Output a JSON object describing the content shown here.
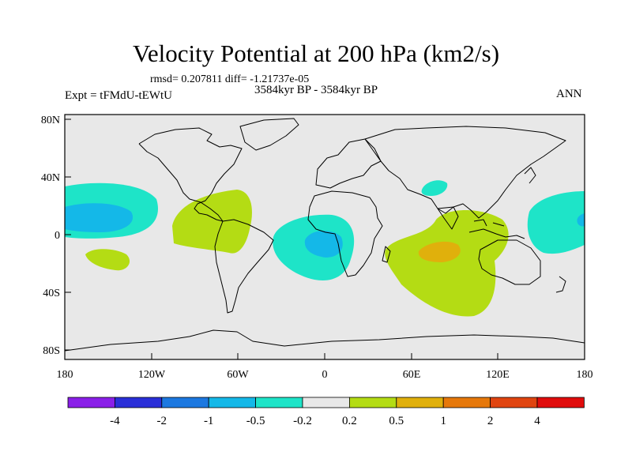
{
  "title": "Velocity Potential at 200 hPa (km2/s)",
  "stats": "rmsd= 0.207811 diff= -1.21737e-05",
  "experiment": "Expt = tFMdU-tEWtU",
  "period": "3584kyr BP - 3584kyr BP",
  "season": "ANN",
  "lat_labels": [
    "80N",
    "40N",
    "0",
    "40S",
    "80S"
  ],
  "lon_labels": [
    "180",
    "120W",
    "60W",
    "0",
    "60E",
    "120E",
    "180"
  ],
  "colorbar": {
    "colors": [
      "#8a1fe8",
      "#2a2fd8",
      "#1c78e0",
      "#14b8e8",
      "#1ee4c8",
      "#e8e8e8",
      "#b4dc14",
      "#e0b00c",
      "#e6780a",
      "#e04410",
      "#e00c0c"
    ],
    "labels": [
      "-4",
      "-2",
      "-1",
      "-0.5",
      "-0.2",
      "0.2",
      "0.5",
      "1",
      "2",
      "4"
    ]
  },
  "fields": {
    "neutral": "#e8e8e8",
    "weak_negative": "#1ee4c8",
    "moderate_negative": "#14b8e8",
    "weak_positive": "#b4dc14",
    "moderate_positive": "#e0b00c"
  }
}
